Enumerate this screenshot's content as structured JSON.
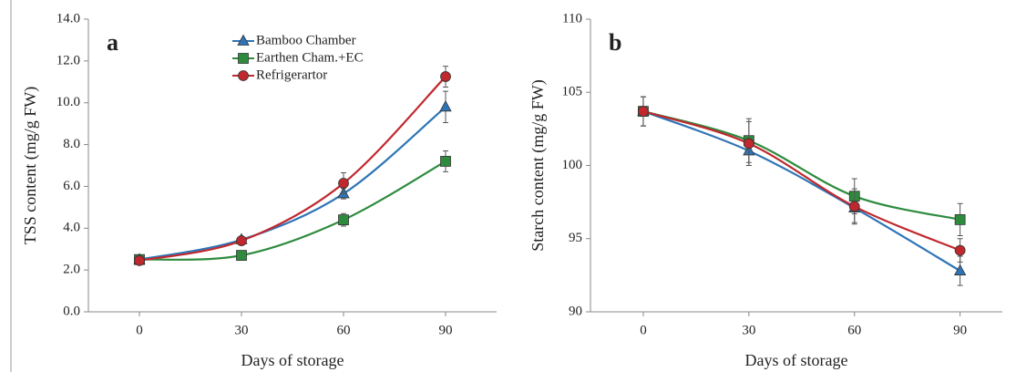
{
  "chart_data": [
    {
      "type": "line",
      "panel_label": "a",
      "y_label": "TSS content  (mg/g FW)",
      "x_label": "Days of storage",
      "x": [
        0,
        30,
        60,
        90
      ],
      "xlim": [
        -15,
        105
      ],
      "xticks": [
        0,
        30,
        60,
        90
      ],
      "ylim": [
        0,
        14
      ],
      "yticks": [
        {
          "value": 0,
          "label": "0.0"
        },
        {
          "value": 2,
          "label": "2.0"
        },
        {
          "value": 4,
          "label": "4.0"
        },
        {
          "value": 6,
          "label": "6.0"
        },
        {
          "value": 8,
          "label": "8.0"
        },
        {
          "value": 10,
          "label": "10.0"
        },
        {
          "value": 12,
          "label": "12.0"
        },
        {
          "value": 14,
          "label": "14.0"
        }
      ],
      "legend": "upper center",
      "series": [
        {
          "name": "Bamboo Chamber",
          "color": "#2e75b6",
          "marker": "triangle",
          "values": [
            2.5,
            3.45,
            5.65,
            9.8
          ],
          "errors": [
            0.1,
            0.1,
            0.25,
            0.75
          ]
        },
        {
          "name": "Earthen Cham.+EC",
          "color": "#2e8b3e",
          "marker": "square",
          "values": [
            2.5,
            2.7,
            4.4,
            7.2
          ],
          "errors": [
            0.1,
            0.1,
            0.3,
            0.5
          ]
        },
        {
          "name": "Refrigerartor",
          "color": "#c0282d",
          "marker": "circle",
          "values": [
            2.45,
            3.4,
            6.15,
            11.25
          ],
          "errors": [
            0.1,
            0.1,
            0.5,
            0.5
          ]
        }
      ]
    },
    {
      "type": "line",
      "panel_label": "b",
      "y_label": "Starch content  (mg/g FW)",
      "x_label": "Days of storage",
      "x": [
        0,
        30,
        60,
        90
      ],
      "xlim": [
        -15,
        102
      ],
      "xticks": [
        0,
        30,
        60,
        90
      ],
      "ylim": [
        90,
        110
      ],
      "yticks": [
        90,
        95,
        100,
        105,
        110
      ],
      "series": [
        {
          "color": "#2e75b6",
          "marker": "triangle",
          "values": [
            103.7,
            101.0,
            97.1,
            92.8
          ],
          "errors": [
            1.0,
            1.0,
            1.0,
            1.0
          ]
        },
        {
          "color": "#2e8b3e",
          "marker": "square",
          "values": [
            103.7,
            101.7,
            97.9,
            96.3
          ],
          "errors": [
            1.0,
            1.5,
            1.2,
            1.1
          ]
        },
        {
          "color": "#c0282d",
          "marker": "circle",
          "values": [
            103.7,
            101.5,
            97.2,
            94.2
          ],
          "errors": [
            1.0,
            1.5,
            1.2,
            0.8
          ]
        }
      ]
    }
  ]
}
